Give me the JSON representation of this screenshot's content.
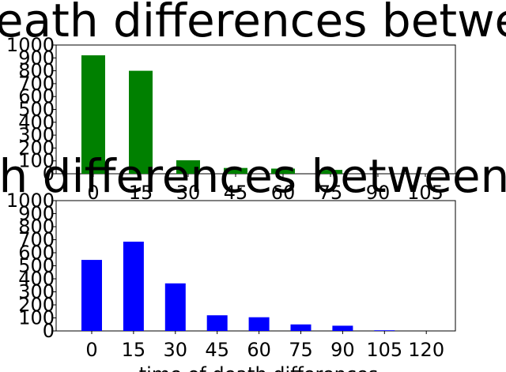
{
  "chart_data": [
    {
      "type": "bar",
      "title": "death differences betwee",
      "color": "#008000",
      "categories": [
        "0",
        "15",
        "30",
        "45",
        "60",
        "75",
        "90",
        "105"
      ],
      "values": [
        920,
        800,
        105,
        45,
        40,
        30,
        0,
        0
      ],
      "yticks": [
        "0",
        "100",
        "200",
        "300",
        "400",
        "500",
        "600",
        "700",
        "800",
        "900",
        "1000"
      ],
      "ylim": [
        0,
        1000
      ],
      "xlabel": "",
      "ylabel": "",
      "grid": false
    },
    {
      "type": "bar",
      "title": "th differences between",
      "color": "#0000ff",
      "categories": [
        "0",
        "15",
        "30",
        "45",
        "60",
        "75",
        "90",
        "105",
        "120"
      ],
      "values": [
        545,
        685,
        365,
        120,
        105,
        50,
        40,
        5,
        0
      ],
      "yticks": [
        "0",
        "100",
        "200",
        "300",
        "400",
        "500",
        "600",
        "700",
        "800",
        "900",
        "1000"
      ],
      "ylim": [
        0,
        1000
      ],
      "xlabel": "time of death differences",
      "xlabel_color": "#ff0000",
      "ylabel": "",
      "grid": false
    }
  ]
}
